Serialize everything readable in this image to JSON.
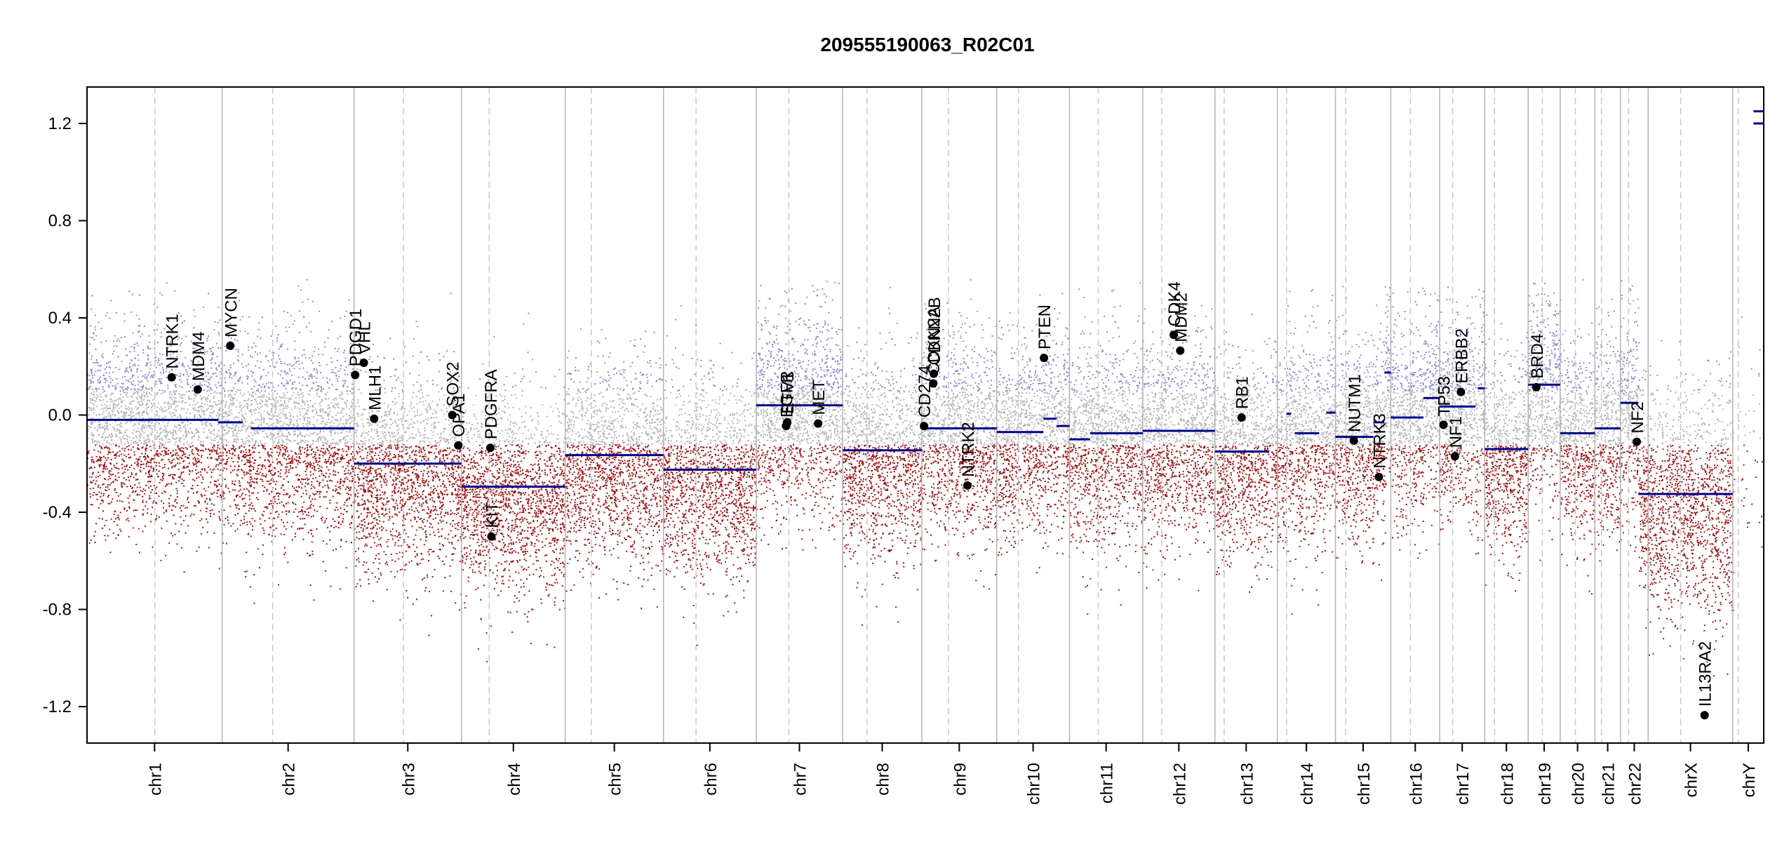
{
  "chart_data": {
    "type": "scatter",
    "title": "209555190063_R02C01",
    "xlabel": "",
    "ylabel": "",
    "ylim": [
      -1.35,
      1.35
    ],
    "yticks": [
      {
        "value": -1.2,
        "label": "-1.2"
      },
      {
        "value": -0.8,
        "label": "-0.8"
      },
      {
        "value": -0.4,
        "label": "-0.4"
      },
      {
        "value": 0.0,
        "label": "0.0"
      },
      {
        "value": 0.4,
        "label": "0.4"
      },
      {
        "value": 0.8,
        "label": "0.8"
      },
      {
        "value": 1.2,
        "label": "1.2"
      }
    ],
    "grid": false,
    "colors": {
      "segment": "#00008B",
      "gain": "#8C8CD2",
      "neutral": "#B4B4B4",
      "loss": "#A01414",
      "separator": "#B4B4B4",
      "centromere": "#C8C8C8"
    },
    "chromosomes": [
      {
        "name": "chr1",
        "start": 0,
        "end": 249,
        "cen": 125
      },
      {
        "name": "chr2",
        "start": 249,
        "end": 492,
        "cen": 342
      },
      {
        "name": "chr3",
        "start": 492,
        "end": 690,
        "cen": 583
      },
      {
        "name": "chr4",
        "start": 690,
        "end": 881,
        "cen": 741
      },
      {
        "name": "chr5",
        "start": 881,
        "end": 1062,
        "cen": 929
      },
      {
        "name": "chr6",
        "start": 1062,
        "end": 1233,
        "cen": 1122
      },
      {
        "name": "chr7",
        "start": 1233,
        "end": 1392,
        "cen": 1293
      },
      {
        "name": "chr8",
        "start": 1392,
        "end": 1538,
        "cen": 1437
      },
      {
        "name": "chr9",
        "start": 1538,
        "end": 1676,
        "cen": 1587
      },
      {
        "name": "chr10",
        "start": 1676,
        "end": 1810,
        "cen": 1716
      },
      {
        "name": "chr11",
        "start": 1810,
        "end": 1945,
        "cen": 1863
      },
      {
        "name": "chr12",
        "start": 1945,
        "end": 2078,
        "cen": 1980
      },
      {
        "name": "chr13",
        "start": 2078,
        "end": 2193,
        "cen": 2095
      },
      {
        "name": "chr14",
        "start": 2193,
        "end": 2300,
        "cen": 2210
      },
      {
        "name": "chr15",
        "start": 2300,
        "end": 2402,
        "cen": 2319
      },
      {
        "name": "chr16",
        "start": 2402,
        "end": 2492,
        "cen": 2438
      },
      {
        "name": "chr17",
        "start": 2492,
        "end": 2575,
        "cen": 2516
      },
      {
        "name": "chr18",
        "start": 2575,
        "end": 2655,
        "cen": 2593
      },
      {
        "name": "chr19",
        "start": 2655,
        "end": 2714,
        "cen": 2681
      },
      {
        "name": "chr20",
        "start": 2714,
        "end": 2778,
        "cen": 2742
      },
      {
        "name": "chr21",
        "start": 2778,
        "end": 2825,
        "cen": 2790
      },
      {
        "name": "chr22",
        "start": 2825,
        "end": 2876,
        "cen": 2840
      },
      {
        "name": "chrX",
        "start": 2876,
        "end": 3032,
        "cen": 2936
      },
      {
        "name": "chrY",
        "start": 3032,
        "end": 3089,
        "cen": 3042
      }
    ],
    "segments": [
      {
        "start": 0,
        "end": 242,
        "value": -0.02
      },
      {
        "start": 242,
        "end": 287,
        "value": -0.03
      },
      {
        "start": 302,
        "end": 492,
        "value": -0.055
      },
      {
        "start": 492,
        "end": 690,
        "value": -0.2
      },
      {
        "start": 690,
        "end": 881,
        "value": -0.295
      },
      {
        "start": 881,
        "end": 1062,
        "value": -0.165
      },
      {
        "start": 1062,
        "end": 1233,
        "value": -0.225
      },
      {
        "start": 1233,
        "end": 1392,
        "value": 0.04
      },
      {
        "start": 1392,
        "end": 1538,
        "value": -0.145
      },
      {
        "start": 1538,
        "end": 1676,
        "value": -0.055
      },
      {
        "start": 1676,
        "end": 1762,
        "value": -0.07
      },
      {
        "start": 1762,
        "end": 1786,
        "value": -0.015
      },
      {
        "start": 1786,
        "end": 1810,
        "value": -0.045
      },
      {
        "start": 1810,
        "end": 1848,
        "value": -0.1
      },
      {
        "start": 1848,
        "end": 1945,
        "value": -0.075
      },
      {
        "start": 1945,
        "end": 2078,
        "value": -0.065
      },
      {
        "start": 2078,
        "end": 2178,
        "value": -0.15
      },
      {
        "start": 2210,
        "end": 2218,
        "value": 0.005
      },
      {
        "start": 2225,
        "end": 2270,
        "value": -0.075
      },
      {
        "start": 2283,
        "end": 2300,
        "value": 0.01
      },
      {
        "start": 2300,
        "end": 2370,
        "value": -0.09
      },
      {
        "start": 2370,
        "end": 2390,
        "value": -0.03
      },
      {
        "start": 2390,
        "end": 2402,
        "value": 0.175
      },
      {
        "start": 2402,
        "end": 2462,
        "value": -0.01
      },
      {
        "start": 2462,
        "end": 2492,
        "value": 0.07
      },
      {
        "start": 2492,
        "end": 2558,
        "value": 0.035
      },
      {
        "start": 2562,
        "end": 2575,
        "value": 0.11
      },
      {
        "start": 2575,
        "end": 2655,
        "value": -0.14
      },
      {
        "start": 2655,
        "end": 2714,
        "value": 0.125
      },
      {
        "start": 2714,
        "end": 2778,
        "value": -0.075
      },
      {
        "start": 2778,
        "end": 2825,
        "value": -0.055
      },
      {
        "start": 2825,
        "end": 2858,
        "value": 0.05
      },
      {
        "start": 2858,
        "end": 3032,
        "value": -0.325
      },
      {
        "start": 3070,
        "end": 3089,
        "value": 1.25
      },
      {
        "start": 3070,
        "end": 3089,
        "value": 1.2
      }
    ],
    "genes": [
      {
        "name": "NTRK1",
        "pos": 156,
        "value": 0.155
      },
      {
        "name": "MDM4",
        "pos": 204,
        "value": 0.105
      },
      {
        "name": "MYCN",
        "pos": 264,
        "value": 0.285
      },
      {
        "name": "PDGD1",
        "pos": 494,
        "value": 0.165
      },
      {
        "name": "VHL",
        "pos": 510,
        "value": 0.215
      },
      {
        "name": "MLH1",
        "pos": 529,
        "value": -0.015
      },
      {
        "name": "SOX2",
        "pos": 673,
        "value": 0.0
      },
      {
        "name": "OPA1",
        "pos": 684,
        "value": -0.125
      },
      {
        "name": "KIT",
        "pos": 745,
        "value": -0.5
      },
      {
        "name": "PDGFRA",
        "pos": 743,
        "value": -0.135
      },
      {
        "name": "EGFR",
        "pos": 1288,
        "value": -0.045
      },
      {
        "name": "ETV1",
        "pos": 1290,
        "value": -0.03
      },
      {
        "name": "MET",
        "pos": 1347,
        "value": -0.035
      },
      {
        "name": "CD274",
        "pos": 1542,
        "value": -0.045
      },
      {
        "name": "CDKN2A",
        "pos": 1559,
        "value": 0.13
      },
      {
        "name": "CDKN2B",
        "pos": 1560,
        "value": 0.17
      },
      {
        "name": "NTRK2",
        "pos": 1622,
        "value": -0.29
      },
      {
        "name": "PTEN",
        "pos": 1763,
        "value": 0.235
      },
      {
        "name": "CDK4",
        "pos": 2002,
        "value": 0.33
      },
      {
        "name": "MDM2",
        "pos": 2014,
        "value": 0.265
      },
      {
        "name": "RB1",
        "pos": 2127,
        "value": -0.01
      },
      {
        "name": "NUTM1",
        "pos": 2334,
        "value": -0.105
      },
      {
        "name": "NTRK3",
        "pos": 2380,
        "value": -0.255
      },
      {
        "name": "TP53",
        "pos": 2499,
        "value": -0.04
      },
      {
        "name": "NF1",
        "pos": 2520,
        "value": -0.17
      },
      {
        "name": "ERBB2",
        "pos": 2531,
        "value": 0.095
      },
      {
        "name": "BRD4",
        "pos": 2670,
        "value": 0.115
      },
      {
        "name": "NF2",
        "pos": 2855,
        "value": -0.11
      },
      {
        "name": "IL13RA2",
        "pos": 2980,
        "value": -1.235
      }
    ]
  }
}
